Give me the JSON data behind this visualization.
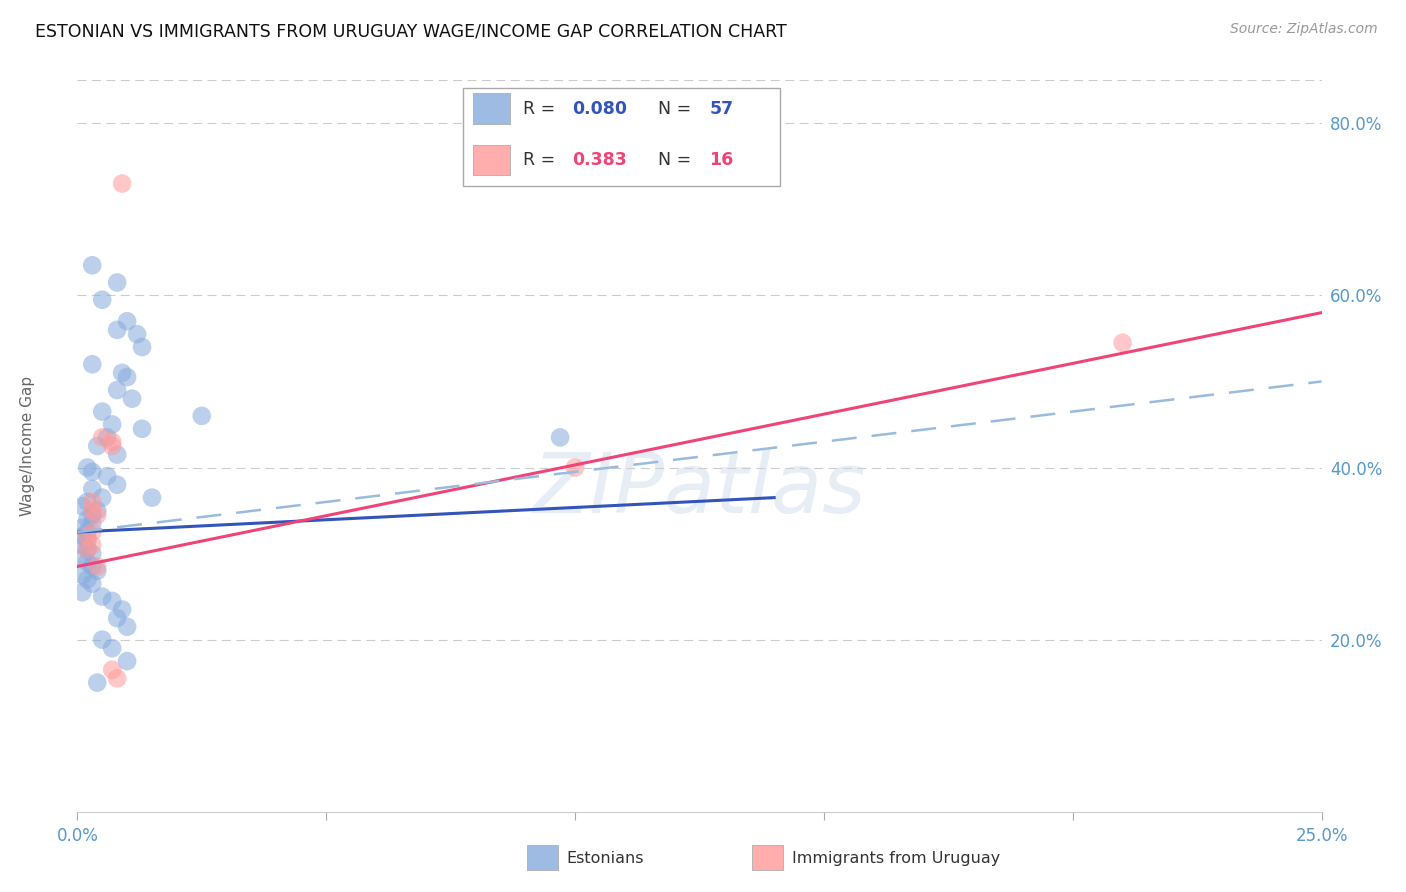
{
  "title": "ESTONIAN VS IMMIGRANTS FROM URUGUAY WAGE/INCOME GAP CORRELATION CHART",
  "source": "Source: ZipAtlas.com",
  "ylabel": "Wage/Income Gap",
  "xlim": [
    0.0,
    0.25
  ],
  "ylim": [
    0.0,
    0.85
  ],
  "xticks": [
    0.0,
    0.05,
    0.1,
    0.15,
    0.2,
    0.25
  ],
  "xticklabels": [
    "0.0%",
    "",
    "",
    "",
    "",
    "25.0%"
  ],
  "yticks": [
    0.2,
    0.4,
    0.6,
    0.8
  ],
  "yticklabels": [
    "20.0%",
    "40.0%",
    "60.0%",
    "80.0%"
  ],
  "watermark": "ZIPatlas",
  "legend_blue_r": "0.080",
  "legend_blue_n": "57",
  "legend_pink_r": "0.383",
  "legend_pink_n": "16",
  "legend_label_blue": "Estonians",
  "legend_label_pink": "Immigrants from Uruguay",
  "blue_color": "#85AADD",
  "pink_color": "#FF9999",
  "blue_line_color": "#3355BB",
  "pink_line_color": "#EE4477",
  "dashed_line_color": "#99BBDD",
  "axis_tick_color": "#5599CC",
  "grid_color": "#CCCCCC",
  "blue_scatter": [
    [
      0.003,
      0.635
    ],
    [
      0.008,
      0.615
    ],
    [
      0.005,
      0.595
    ],
    [
      0.01,
      0.57
    ],
    [
      0.008,
      0.56
    ],
    [
      0.012,
      0.555
    ],
    [
      0.013,
      0.54
    ],
    [
      0.003,
      0.52
    ],
    [
      0.009,
      0.51
    ],
    [
      0.01,
      0.505
    ],
    [
      0.008,
      0.49
    ],
    [
      0.011,
      0.48
    ],
    [
      0.005,
      0.465
    ],
    [
      0.007,
      0.45
    ],
    [
      0.013,
      0.445
    ],
    [
      0.006,
      0.435
    ],
    [
      0.004,
      0.425
    ],
    [
      0.008,
      0.415
    ],
    [
      0.002,
      0.4
    ],
    [
      0.003,
      0.395
    ],
    [
      0.006,
      0.39
    ],
    [
      0.008,
      0.38
    ],
    [
      0.003,
      0.375
    ],
    [
      0.005,
      0.365
    ],
    [
      0.002,
      0.36
    ],
    [
      0.001,
      0.355
    ],
    [
      0.004,
      0.35
    ],
    [
      0.003,
      0.345
    ],
    [
      0.002,
      0.34
    ],
    [
      0.003,
      0.335
    ],
    [
      0.001,
      0.33
    ],
    [
      0.002,
      0.325
    ],
    [
      0.001,
      0.32
    ],
    [
      0.002,
      0.315
    ],
    [
      0.001,
      0.31
    ],
    [
      0.002,
      0.305
    ],
    [
      0.003,
      0.3
    ],
    [
      0.001,
      0.295
    ],
    [
      0.002,
      0.29
    ],
    [
      0.003,
      0.285
    ],
    [
      0.004,
      0.28
    ],
    [
      0.001,
      0.275
    ],
    [
      0.002,
      0.27
    ],
    [
      0.003,
      0.265
    ],
    [
      0.001,
      0.255
    ],
    [
      0.005,
      0.25
    ],
    [
      0.007,
      0.245
    ],
    [
      0.009,
      0.235
    ],
    [
      0.008,
      0.225
    ],
    [
      0.01,
      0.215
    ],
    [
      0.005,
      0.2
    ],
    [
      0.007,
      0.19
    ],
    [
      0.01,
      0.175
    ],
    [
      0.004,
      0.15
    ],
    [
      0.015,
      0.365
    ],
    [
      0.025,
      0.46
    ],
    [
      0.097,
      0.435
    ]
  ],
  "pink_scatter": [
    [
      0.009,
      0.73
    ],
    [
      0.005,
      0.435
    ],
    [
      0.007,
      0.43
    ],
    [
      0.007,
      0.425
    ],
    [
      0.003,
      0.36
    ],
    [
      0.003,
      0.35
    ],
    [
      0.004,
      0.345
    ],
    [
      0.003,
      0.325
    ],
    [
      0.002,
      0.32
    ],
    [
      0.003,
      0.31
    ],
    [
      0.002,
      0.305
    ],
    [
      0.004,
      0.285
    ],
    [
      0.007,
      0.165
    ],
    [
      0.008,
      0.155
    ],
    [
      0.21,
      0.545
    ],
    [
      0.1,
      0.4
    ]
  ],
  "blue_trendline": [
    [
      0.0,
      0.325
    ],
    [
      0.14,
      0.365
    ]
  ],
  "pink_trendline": [
    [
      0.0,
      0.285
    ],
    [
      0.25,
      0.58
    ]
  ],
  "blue_dashed_line": [
    [
      0.0,
      0.325
    ],
    [
      0.25,
      0.5
    ]
  ]
}
